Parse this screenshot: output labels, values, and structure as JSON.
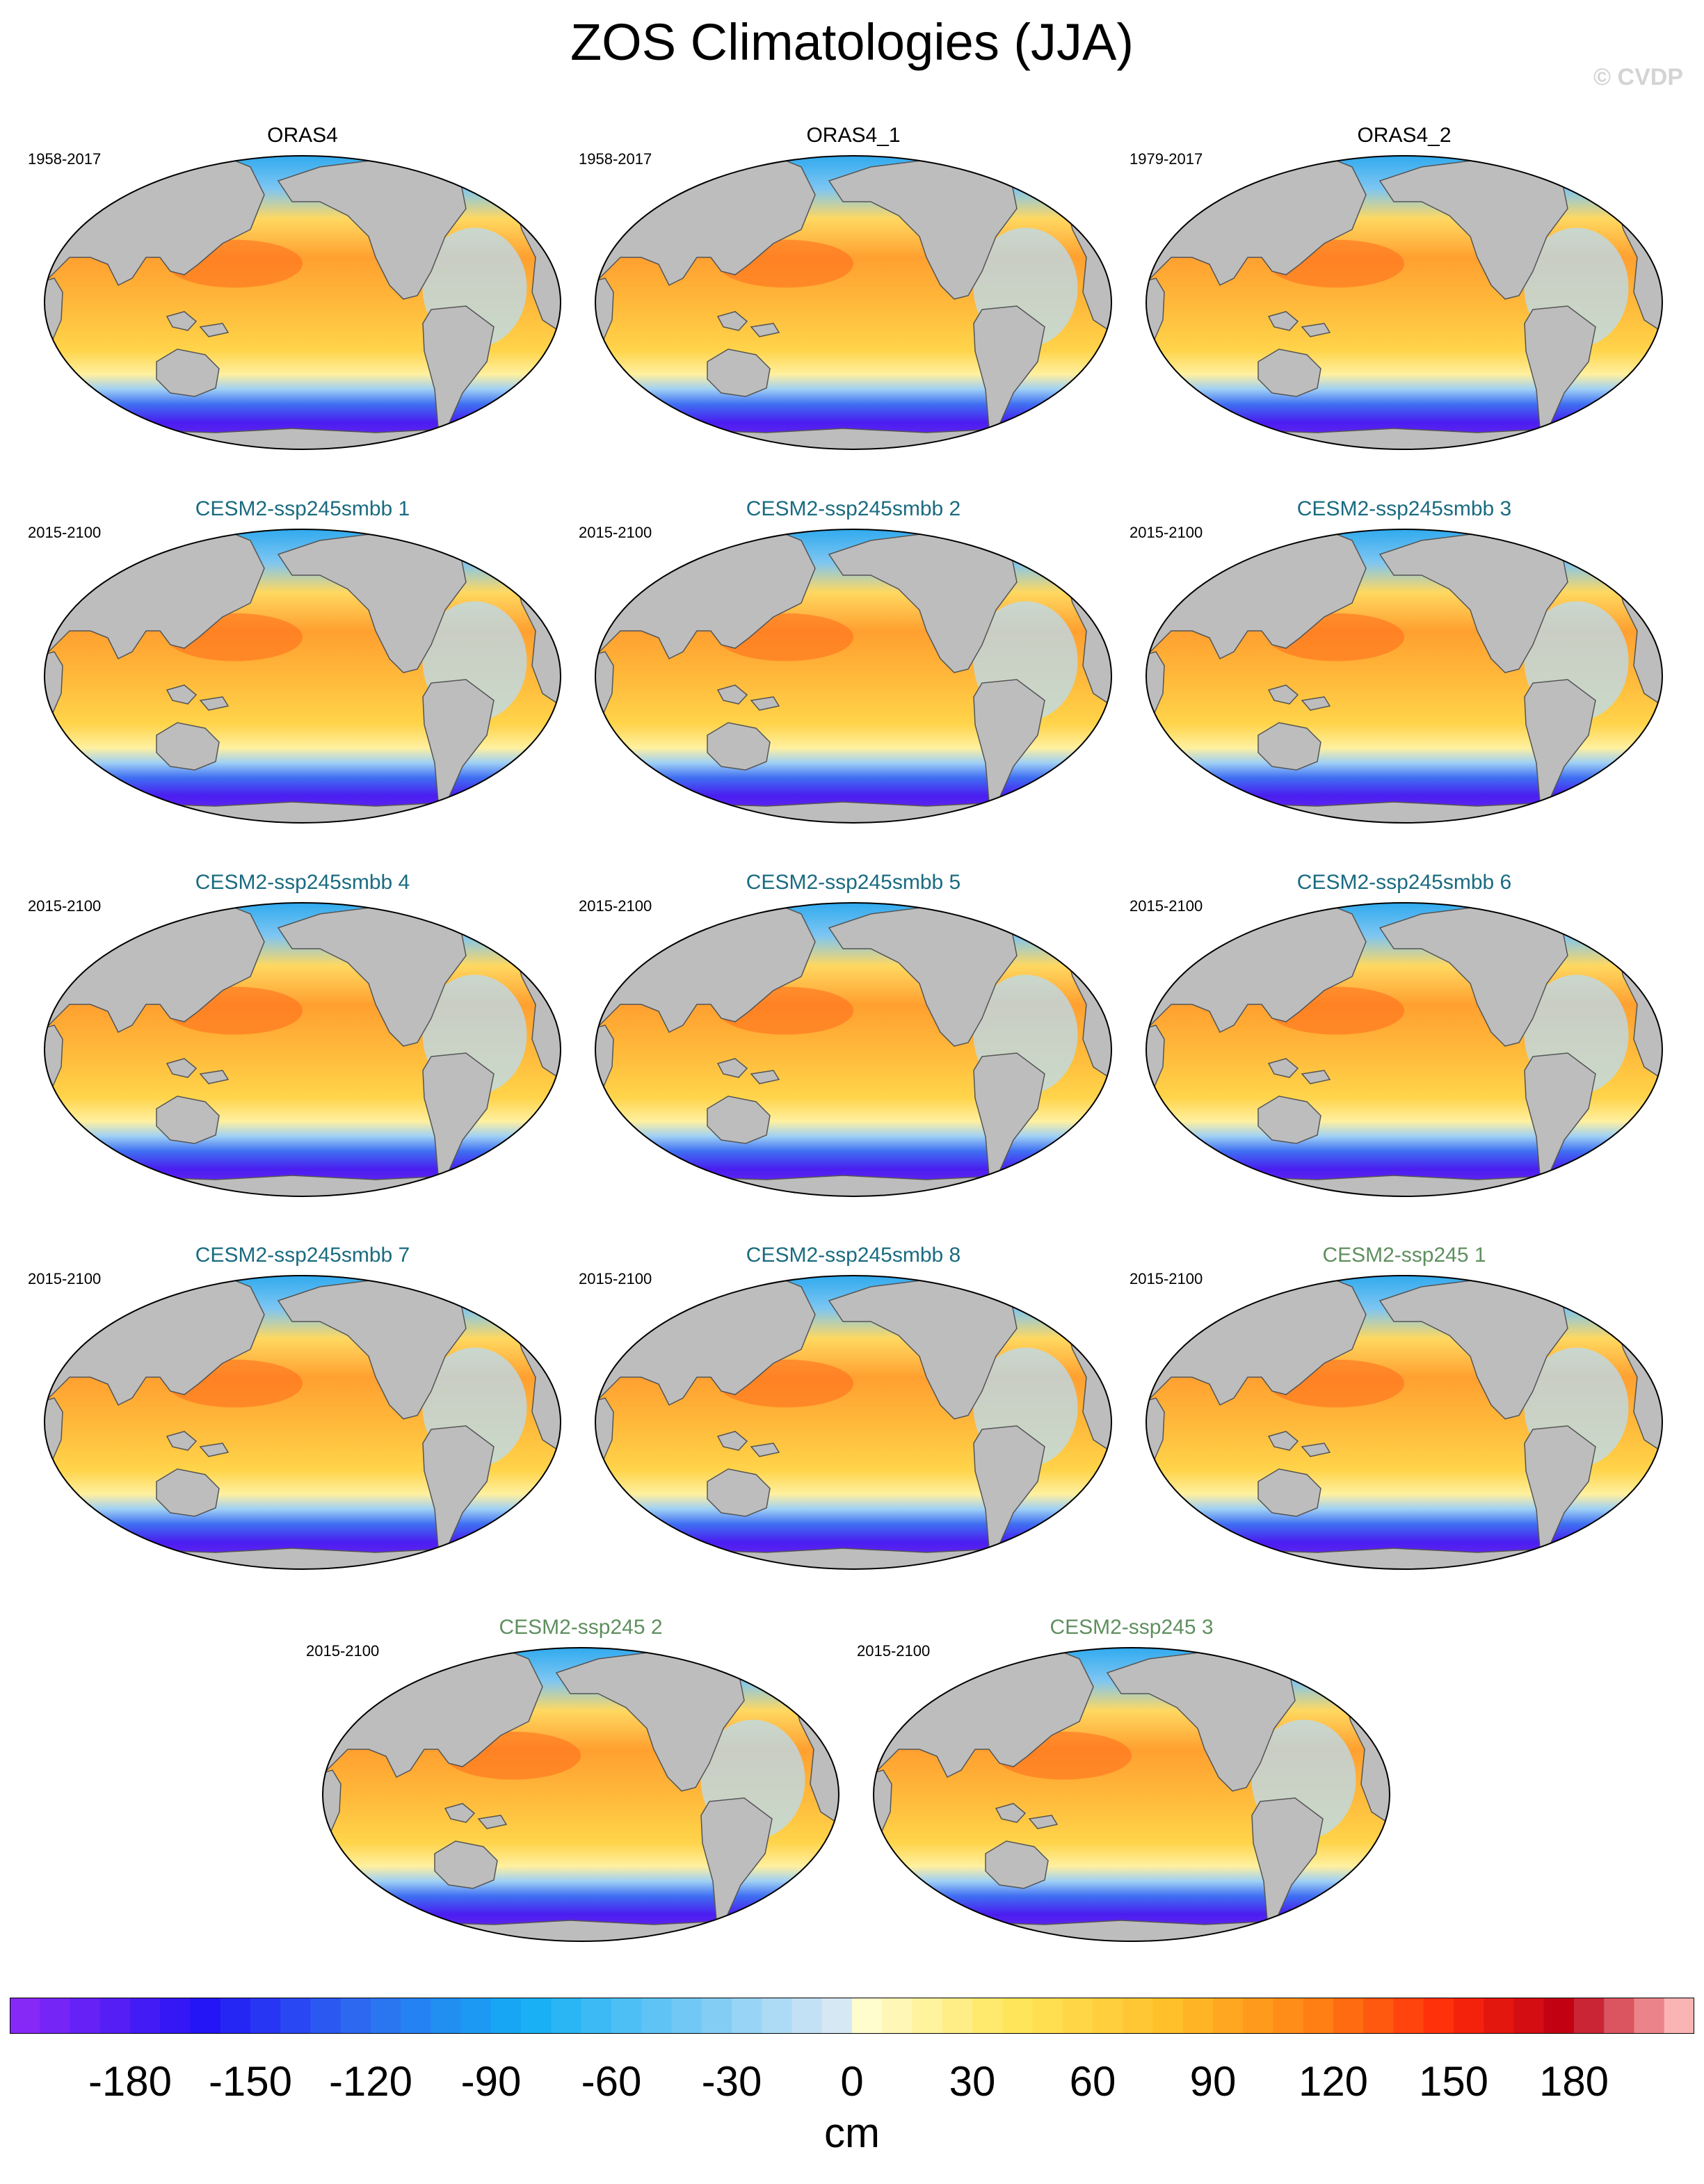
{
  "title": "ZOS Climatologies (JJA)",
  "watermark": "© CVDP",
  "chart_data": {
    "type": "heatmap",
    "title": "ZOS Climatologies (JJA)",
    "field": "zos",
    "season": "JJA",
    "units": "cm",
    "colorbar": {
      "min": -210,
      "max": 210,
      "step": 7.5,
      "tick_values": [
        -180,
        -150,
        -120,
        -90,
        -60,
        -30,
        0,
        30,
        60,
        90,
        120,
        150,
        180
      ],
      "tick_labels": [
        "-180",
        "-150",
        "-120",
        "-90",
        "-60",
        "-30",
        "0",
        "30",
        "60",
        "90",
        "120",
        "150",
        "180"
      ],
      "unit_label": "cm"
    },
    "panels": [
      {
        "name": "ORAS4",
        "years": "1958-2017",
        "group": "obs"
      },
      {
        "name": "ORAS4_1",
        "years": "1958-2017",
        "group": "obs"
      },
      {
        "name": "ORAS4_2",
        "years": "1979-2017",
        "group": "obs"
      },
      {
        "name": "CESM2-ssp245smbb 1",
        "years": "2015-2100",
        "group": "smbb"
      },
      {
        "name": "CESM2-ssp245smbb 2",
        "years": "2015-2100",
        "group": "smbb"
      },
      {
        "name": "CESM2-ssp245smbb 3",
        "years": "2015-2100",
        "group": "smbb"
      },
      {
        "name": "CESM2-ssp245smbb 4",
        "years": "2015-2100",
        "group": "smbb"
      },
      {
        "name": "CESM2-ssp245smbb 5",
        "years": "2015-2100",
        "group": "smbb"
      },
      {
        "name": "CESM2-ssp245smbb 6",
        "years": "2015-2100",
        "group": "smbb"
      },
      {
        "name": "CESM2-ssp245smbb 7",
        "years": "2015-2100",
        "group": "smbb"
      },
      {
        "name": "CESM2-ssp245smbb 8",
        "years": "2015-2100",
        "group": "smbb"
      },
      {
        "name": "CESM2-ssp245 1",
        "years": "2015-2100",
        "group": "ssp245"
      },
      {
        "name": "CESM2-ssp245 2",
        "years": "2015-2100",
        "group": "ssp245"
      },
      {
        "name": "CESM2-ssp245 3",
        "years": "2015-2100",
        "group": "ssp245"
      }
    ],
    "title_colors": {
      "obs": "#000000",
      "smbb": "#1a6b80",
      "ssp245": "#5f8f5f"
    }
  }
}
